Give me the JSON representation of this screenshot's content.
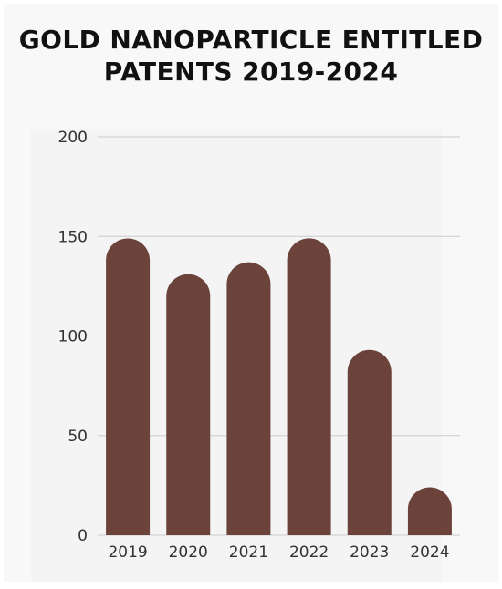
{
  "chart_data": {
    "type": "bar",
    "title": "GOLD NANOPARTICLE ENTITLED PATENTS 2019-2024",
    "xlabel": "",
    "ylabel": "",
    "categories": [
      "2019",
      "2020",
      "2021",
      "2022",
      "2023",
      "2024"
    ],
    "values": [
      149,
      131,
      137,
      149,
      93,
      24
    ],
    "ylim": [
      0,
      200
    ],
    "yticks": [
      0,
      50,
      100,
      150,
      200
    ],
    "ytick_labels": [
      "0",
      "50",
      "100",
      "150",
      "200"
    ],
    "grid": true,
    "legend": "none",
    "bar_color": "#6b433b",
    "grid_color": "#cccccc",
    "background_color": "#f8f8f8",
    "bar_shape": "rounded-top"
  }
}
